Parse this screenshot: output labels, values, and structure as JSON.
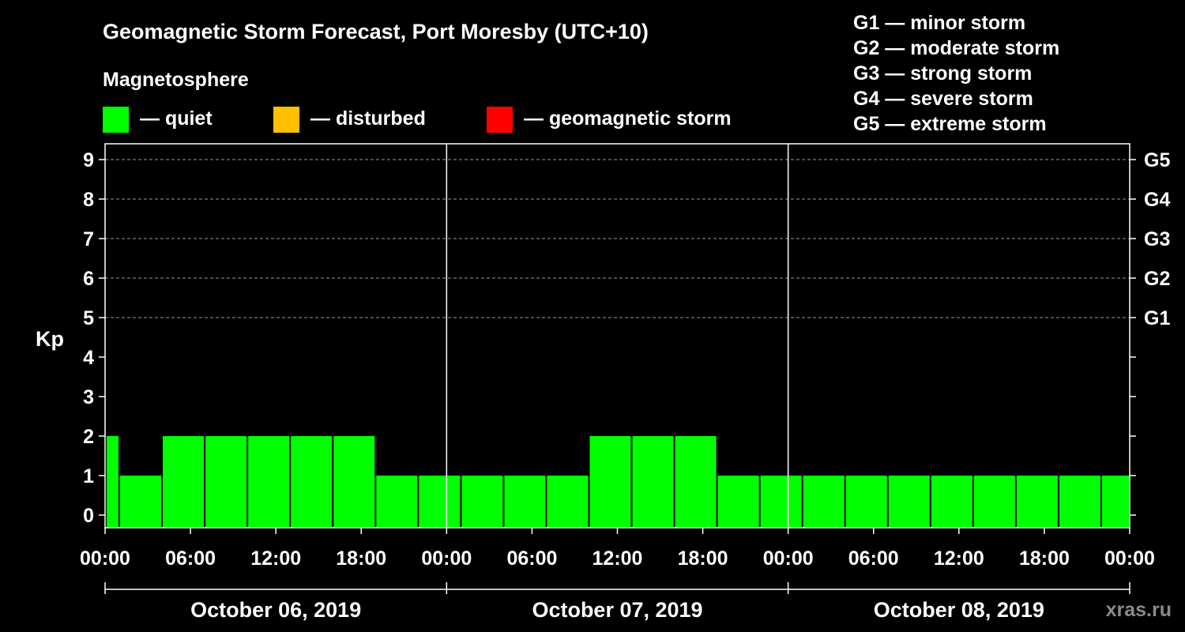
{
  "chart_data": {
    "type": "bar",
    "title": "Geomagnetic Storm Forecast, Port Moresby (UTC+10)",
    "ylabel": "Kp",
    "ylim": [
      0,
      9
    ],
    "y_ticks": [
      "0",
      "1",
      "2",
      "3",
      "4",
      "5",
      "6",
      "7",
      "8",
      "9"
    ],
    "grid": "dashed horizontal lines at Kp 5–9",
    "magnetosphere_legend": {
      "title": "Magnetosphere",
      "items": [
        {
          "label": "— quiet",
          "color": "#00ff00"
        },
        {
          "label": "— disturbed",
          "color": "#ffc000"
        },
        {
          "label": "— geomagnetic storm",
          "color": "#ff0000"
        }
      ]
    },
    "storm_scale_legend": [
      "G1 — minor storm",
      "G2 — moderate storm",
      "G3 — strong storm",
      "G4 — severe storm",
      "G5 — extreme storm"
    ],
    "right_axis": [
      {
        "label": "G1",
        "kp": 5
      },
      {
        "label": "G2",
        "kp": 6
      },
      {
        "label": "G3",
        "kp": 7
      },
      {
        "label": "G4",
        "kp": 8
      },
      {
        "label": "G5",
        "kp": 9
      }
    ],
    "x_tick_labels": [
      "00:00",
      "06:00",
      "12:00",
      "18:00",
      "00:00",
      "06:00",
      "12:00",
      "18:00",
      "00:00",
      "06:00",
      "12:00",
      "18:00",
      "00:00"
    ],
    "days": [
      "October 06, 2019",
      "October 07, 2019",
      "October 08, 2019"
    ],
    "hours_span": 72,
    "bar_interval_hours": 3,
    "first_bar_start_hour": -2,
    "values": [
      2,
      1,
      2,
      2,
      2,
      2,
      2,
      1,
      1,
      1,
      1,
      1,
      2,
      2,
      2,
      1,
      1,
      1,
      1,
      1,
      1,
      1,
      1,
      1,
      1
    ],
    "bar_color": "#00ff00"
  },
  "watermark": "xras.ru"
}
